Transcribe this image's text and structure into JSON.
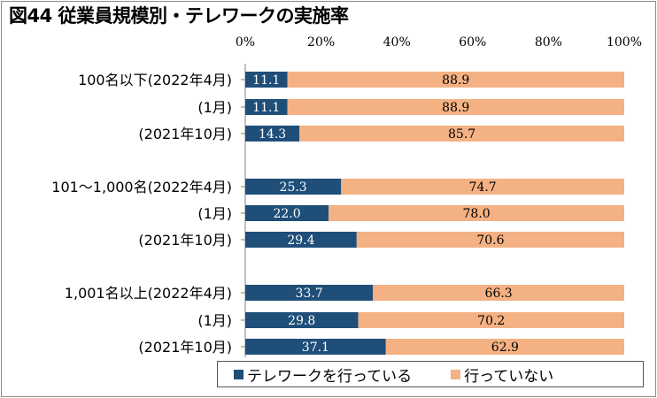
{
  "title": "図44 従業員規模別・テレワークの実施率",
  "colors": {
    "doing": "#1f4e79",
    "not_doing": "#f4b183"
  },
  "chart_data": {
    "type": "bar",
    "orientation": "horizontal",
    "stacked": true,
    "title": "図44 従業員規模別・テレワークの実施率",
    "xlim": [
      0,
      100
    ],
    "x_ticks": [
      "0%",
      "20%",
      "40%",
      "60%",
      "80%",
      "100%"
    ],
    "grid": false,
    "legend_position": "bottom",
    "categories": [
      "100名以下(2022年4月)",
      "(1月)",
      "(2021年10月)",
      "101～1,000名(2022年4月)",
      "(1月)",
      "(2021年10月)",
      "1,001名以上(2022年4月)",
      "(1月)",
      "(2021年10月)"
    ],
    "series": [
      {
        "name": "テレワークを行っている",
        "values": [
          11.1,
          11.1,
          14.3,
          25.3,
          22.0,
          29.4,
          33.7,
          29.8,
          37.1
        ],
        "labels": [
          "11.1",
          "11.1",
          "14.3",
          "25.3",
          "22.0",
          "29.4",
          "33.7",
          "29.8",
          "37.1"
        ]
      },
      {
        "name": "行っていない",
        "values": [
          88.9,
          88.9,
          85.7,
          74.7,
          78.0,
          70.6,
          66.3,
          70.2,
          62.9
        ],
        "labels": [
          "88.9",
          "88.9",
          "85.7",
          "74.7",
          "78.0",
          "70.6",
          "66.3",
          "70.2",
          "62.9"
        ]
      }
    ]
  }
}
